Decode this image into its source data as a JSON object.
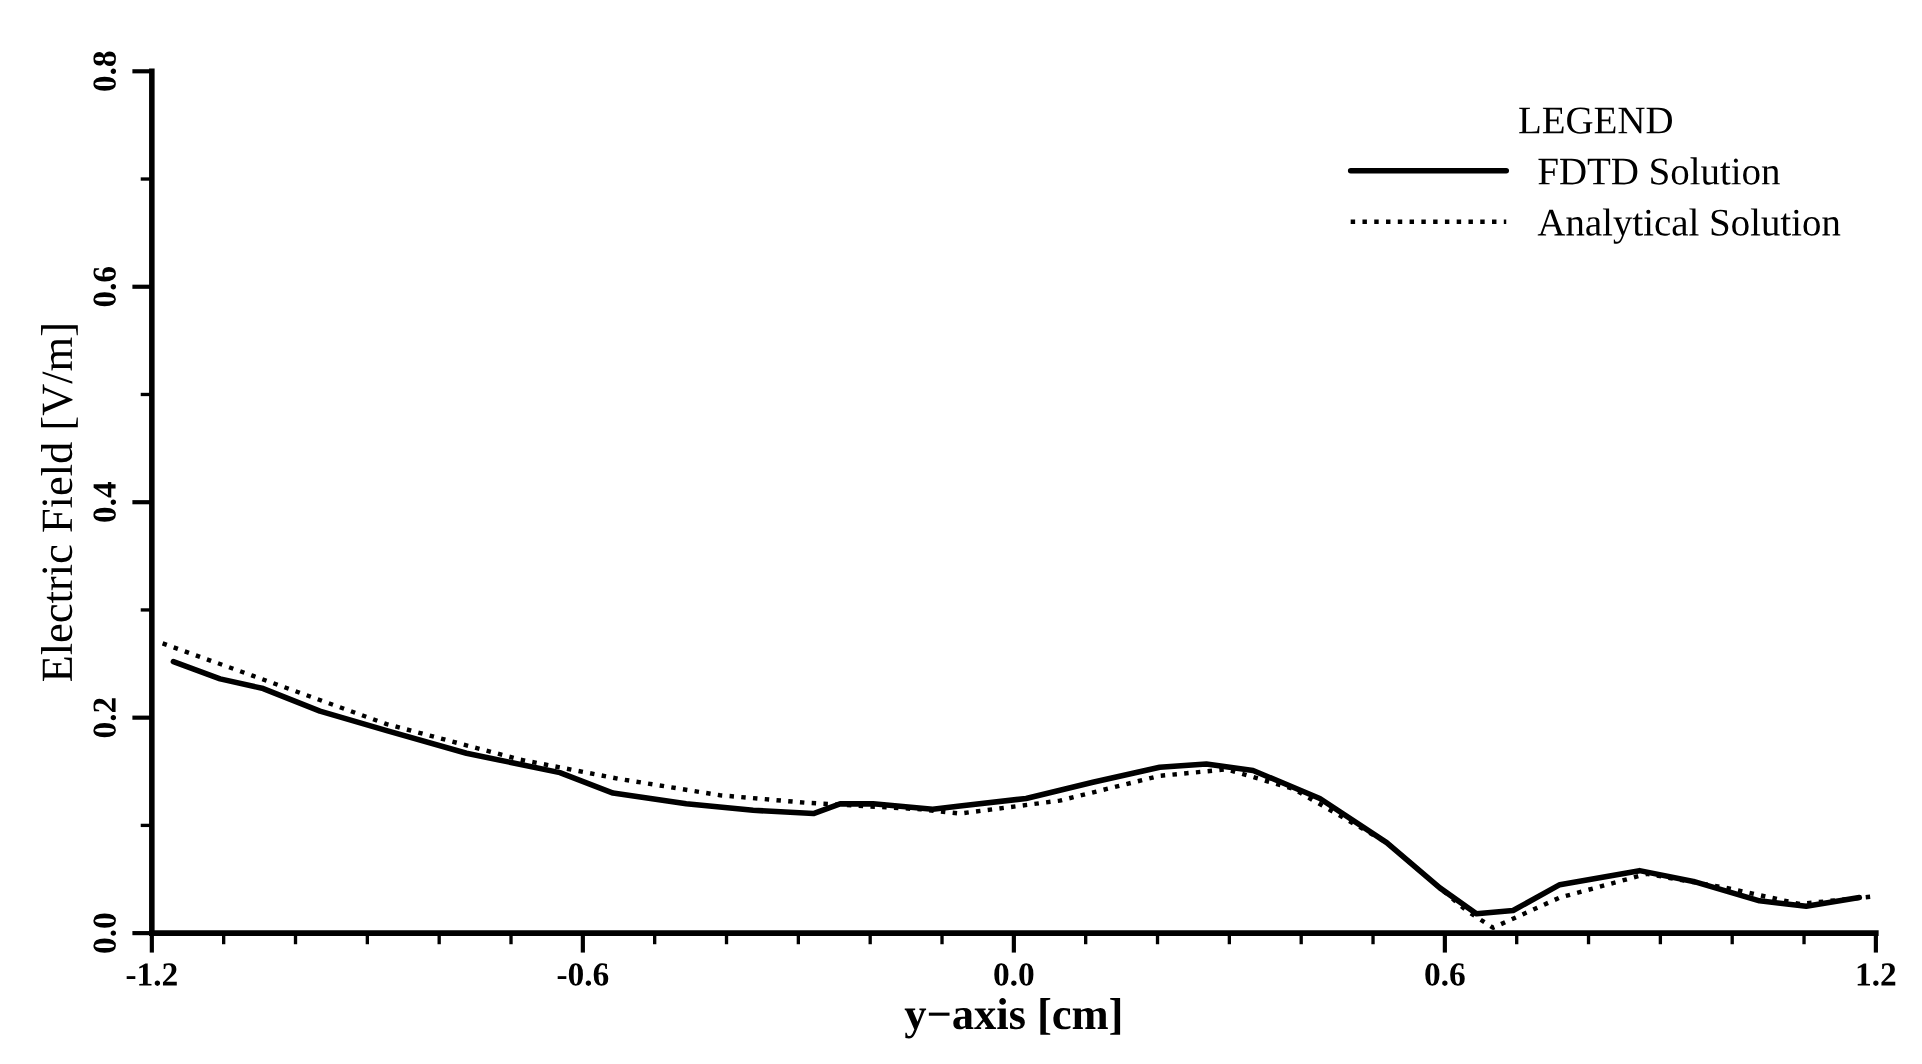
{
  "chart_data": {
    "type": "line",
    "xlabel": "y−axis [cm]",
    "ylabel": "Electric Field [V/m]",
    "legend_title": "LEGEND",
    "xlim": [
      -1.2,
      1.2
    ],
    "xticks": [
      {
        "value": -1.2,
        "label": "-1.2"
      },
      {
        "value": -0.6,
        "label": "-0.6"
      },
      {
        "value": 0.0,
        "label": "0.0"
      },
      {
        "value": 0.6,
        "label": "0.6"
      },
      {
        "value": 1.2,
        "label": "1.2"
      }
    ],
    "ylim": [
      0.0,
      0.8
    ],
    "yticks": [
      {
        "value": 0.0,
        "label": "0.0"
      },
      {
        "value": 0.2,
        "label": "0.2"
      },
      {
        "value": 0.4,
        "label": "0.4"
      },
      {
        "value": 0.6,
        "label": "0.6"
      },
      {
        "value": 0.8,
        "label": "0.8"
      }
    ],
    "grid": false,
    "legend": "top right",
    "series": [
      {
        "name": "FDTD Solution",
        "color": "#000000",
        "line_style": "solid",
        "x": [
          -1.17,
          -1.105,
          -1.045,
          -0.966,
          -0.873,
          -0.762,
          -0.632,
          -0.558,
          -0.456,
          -0.363,
          -0.279,
          -0.242,
          -0.196,
          -0.113,
          -0.075,
          0.017,
          0.11,
          0.203,
          0.268,
          0.333,
          0.426,
          0.519,
          0.593,
          0.644,
          0.695,
          0.76,
          0.871,
          0.946,
          1.038,
          1.103,
          1.177
        ],
        "values": [
          0.252,
          0.236,
          0.227,
          0.206,
          0.188,
          0.167,
          0.149,
          0.13,
          0.12,
          0.114,
          0.111,
          0.12,
          0.12,
          0.115,
          0.118,
          0.125,
          0.14,
          0.154,
          0.157,
          0.151,
          0.125,
          0.084,
          0.042,
          0.018,
          0.021,
          0.045,
          0.058,
          0.048,
          0.03,
          0.025,
          0.033
        ]
      },
      {
        "name": "Analytical Solution",
        "color": "#000000",
        "line_style": "dotted",
        "x": [
          -1.185,
          -1.06,
          -0.873,
          -0.687,
          -0.548,
          -0.409,
          -0.289,
          -0.13,
          -0.075,
          0.064,
          0.203,
          0.296,
          0.389,
          0.519,
          0.63,
          0.667,
          0.76,
          0.881,
          0.992,
          1.094,
          1.195
        ],
        "values": [
          0.269,
          0.239,
          0.194,
          0.161,
          0.143,
          0.128,
          0.121,
          0.115,
          0.111,
          0.123,
          0.146,
          0.152,
          0.134,
          0.084,
          0.021,
          0.005,
          0.033,
          0.055,
          0.042,
          0.027,
          0.034
        ]
      }
    ]
  }
}
